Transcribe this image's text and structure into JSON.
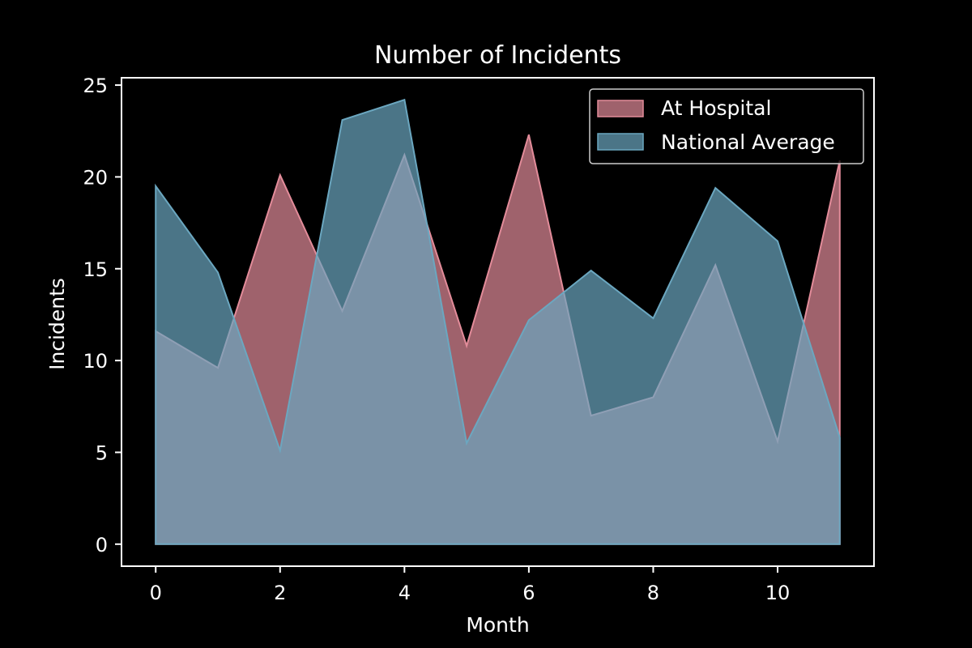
{
  "chart_data": {
    "type": "area",
    "title": "Number of Incidents",
    "xlabel": "Month",
    "ylabel": "Incidents",
    "x": [
      0,
      1,
      2,
      3,
      4,
      5,
      6,
      7,
      8,
      9,
      10,
      11
    ],
    "xlim": [
      -0.55,
      11.55
    ],
    "ylim": [
      -1.2,
      25.4
    ],
    "xticks": [
      0,
      2,
      4,
      6,
      8,
      10
    ],
    "yticks": [
      0,
      5,
      10,
      15,
      20,
      25
    ],
    "grid": false,
    "legend_position": "top-right",
    "series": [
      {
        "name": "At Hospital",
        "color": "#e38c9a",
        "values": [
          11.6,
          9.6,
          20.1,
          12.7,
          21.2,
          10.8,
          22.3,
          7.0,
          8.0,
          15.2,
          5.6,
          20.9
        ]
      },
      {
        "name": "National Average",
        "color": "#6ba7c0",
        "values": [
          19.5,
          14.8,
          5.1,
          23.1,
          24.2,
          5.5,
          12.2,
          14.9,
          12.3,
          19.4,
          16.5,
          5.8
        ]
      }
    ]
  }
}
